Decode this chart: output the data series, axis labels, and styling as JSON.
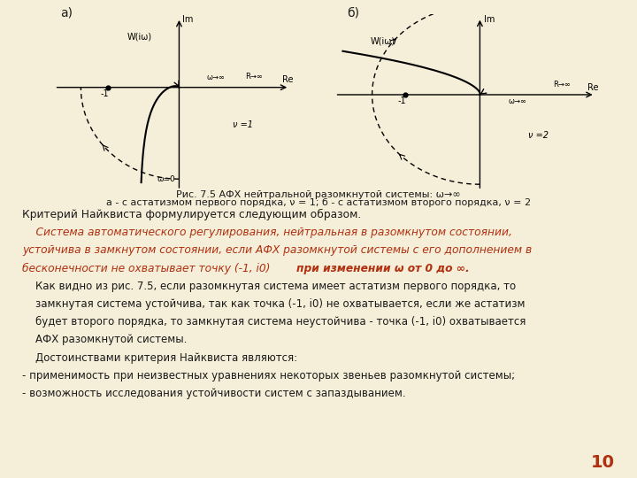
{
  "background_color": "#f5eed8",
  "fig_width": 7.2,
  "fig_height": 5.4,
  "panel_a_label": "а)",
  "panel_b_label": "б)",
  "caption_line1": "Рис. 7.5 АФХ нейтральной разомкнутой системы: ω→∞",
  "caption_line2": "а - с астатизмом первого порядка, ν = 1; б - с астатизмом второго порядка, ν = 2",
  "criterion_text": "Критерий Найквиста формулируется следующим образом.",
  "red_line1": "    Система автоматического регулирования, нейтральная в разомкнутом состоянии,",
  "red_line2": "устойчива в замкнутом состоянии, если АФХ разомкнутой системы с его дополнением в",
  "red_line3a": "бесконечности не охватывает точку (-1, i0) ",
  "red_line3b": "при изменении ω от 0 до ∞.",
  "body_para": "    Как видно из рис. 7.5, если разомкнутая система имеет астатизм первого порядка, то\n    замкнутая система устойчива, так как точка (-1, i0) не охватывается, если же астатизм\n    будет второго порядка, то замкнутая система неустойчива - точка (-1, i0) охватывается\n    АФХ разомкнутой системы.\n    Достоинствами критерия Найквиста являются:\n- применимость при неизвестных уравнениях некоторых звеньев разомкнутой системы;\n- возможность исследования устойчивости систем с запаздыванием.",
  "page_number": "10",
  "dark_color": "#1a1a1a",
  "red_color": "#b03010"
}
